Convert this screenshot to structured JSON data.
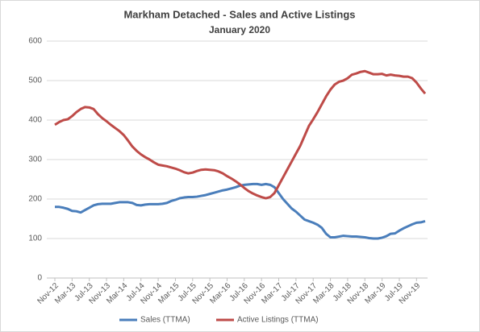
{
  "chart_data": {
    "type": "line",
    "title": "Markham Detached - Sales and Active Listings",
    "subtitle": "January 2020",
    "categories": [
      "Nov-12",
      null,
      null,
      null,
      "Mar-13",
      null,
      null,
      null,
      "Jul-13",
      null,
      null,
      null,
      "Nov-13",
      null,
      null,
      null,
      "Mar-14",
      null,
      null,
      null,
      "Jul-14",
      null,
      null,
      null,
      "Nov-14",
      null,
      null,
      null,
      "Mar-15",
      null,
      null,
      null,
      "Jul-15",
      null,
      null,
      null,
      "Nov-15",
      null,
      null,
      null,
      "Mar-16",
      null,
      null,
      null,
      "Jul-16",
      null,
      null,
      null,
      "Nov-16",
      null,
      null,
      null,
      "Mar-17",
      null,
      null,
      null,
      "Jul-17",
      null,
      null,
      null,
      "Nov-17",
      null,
      null,
      null,
      "Mar-18",
      null,
      null,
      null,
      "Jul-18",
      null,
      null,
      null,
      "Nov-18",
      null,
      null,
      null,
      "Mar-19",
      null,
      null,
      null,
      "Jul-19",
      null,
      null,
      null,
      "Nov-19",
      null,
      null
    ],
    "series": [
      {
        "name": "Sales (TTMA)",
        "color": "#4a7ebb",
        "values": [
          180,
          180,
          178,
          175,
          170,
          169,
          166,
          172,
          178,
          184,
          187,
          188,
          188,
          188,
          190,
          192,
          192,
          192,
          190,
          185,
          184,
          186,
          187,
          187,
          187,
          188,
          190,
          195,
          198,
          202,
          204,
          205,
          205,
          206,
          208,
          210,
          213,
          216,
          219,
          222,
          224,
          227,
          230,
          234,
          236,
          237,
          238,
          238,
          236,
          238,
          236,
          230,
          215,
          200,
          188,
          176,
          168,
          158,
          148,
          144,
          140,
          135,
          127,
          112,
          103,
          103,
          105,
          107,
          106,
          105,
          105,
          104,
          103,
          101,
          100,
          100,
          102,
          106,
          112,
          113,
          120,
          126,
          131,
          136,
          140,
          141,
          144
        ]
      },
      {
        "name": "Active Listings (TTMA)",
        "color": "#be4b48",
        "values": [
          388,
          395,
          400,
          402,
          410,
          420,
          428,
          433,
          432,
          428,
          415,
          405,
          397,
          388,
          380,
          372,
          362,
          348,
          333,
          322,
          313,
          306,
          300,
          293,
          287,
          285,
          283,
          280,
          277,
          273,
          268,
          265,
          267,
          271,
          274,
          275,
          274,
          273,
          270,
          265,
          258,
          252,
          245,
          237,
          228,
          220,
          214,
          209,
          205,
          202,
          205,
          215,
          235,
          255,
          275,
          295,
          315,
          335,
          360,
          385,
          402,
          420,
          440,
          460,
          477,
          490,
          497,
          500,
          506,
          515,
          518,
          522,
          524,
          520,
          516,
          516,
          517,
          513,
          515,
          513,
          512,
          510,
          510,
          506,
          495,
          480,
          467
        ]
      }
    ],
    "ylim": [
      0,
      600
    ],
    "yticks": [
      0,
      100,
      200,
      300,
      400,
      500,
      600
    ],
    "grid": true,
    "legend": "bottom"
  }
}
